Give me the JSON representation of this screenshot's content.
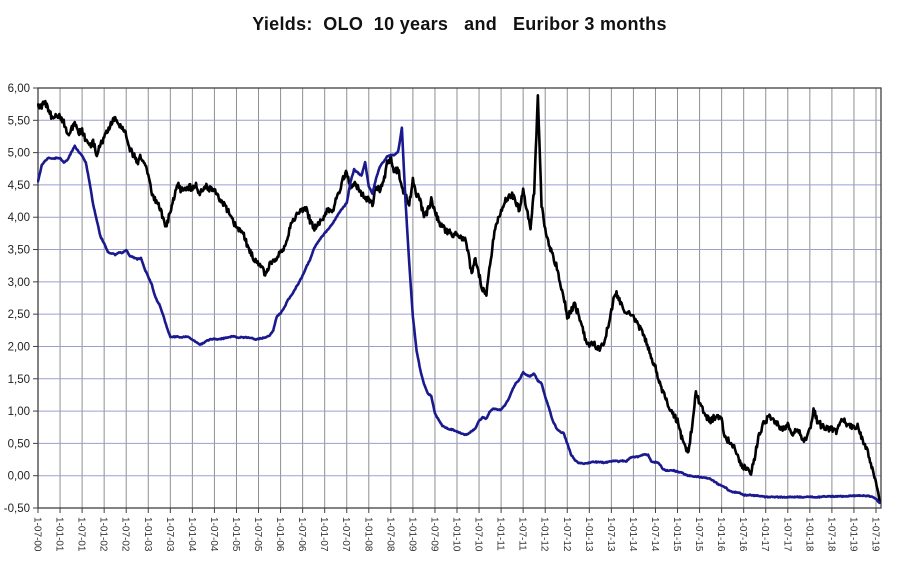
{
  "title": "Yields:  OLO  10 years   and   Euribor 3 months",
  "colors": {
    "olo_line": "#000000",
    "euribor_line": "#1a1a8e",
    "h_gridline": "#9a9fd0",
    "v_gridline": "#8f8f8f",
    "axis_border": "#404040",
    "tick_label": "#333333",
    "y_label": "#222222",
    "background": "#ffffff"
  },
  "chart_data": {
    "type": "line",
    "title": "Yields:  OLO  10 years   and   Euribor 3 months",
    "xlabel": "",
    "ylabel": "",
    "ylim": [
      -0.5,
      6.0
    ],
    "y_step": 0.5,
    "grid": "both",
    "legend_position": "none",
    "x_start_month": "2000-07",
    "x_end_month": "2019-08",
    "x_sampling": "monthly",
    "y_tick_labels": [
      "6,00",
      "5,50",
      "5,00",
      "4,50",
      "4,00",
      "3,50",
      "3,00",
      "2,50",
      "2,00",
      "1,50",
      "1,00",
      "0,50",
      "0,00",
      "-0,50"
    ],
    "x_tick_labels": [
      "1-07-00",
      "1-01-01",
      "1-07-01",
      "1-01-02",
      "1-07-02",
      "1-01-03",
      "1-07-03",
      "1-01-04",
      "1-07-04",
      "1-01-05",
      "1-07-05",
      "1-01-06",
      "1-07-06",
      "1-01-07",
      "1-07-07",
      "1-01-08",
      "1-07-08",
      "1-01-09",
      "1-07-09",
      "1-01-10",
      "1-07-10",
      "1-01-11",
      "1-07-11",
      "1-01-12",
      "1-07-12",
      "1-01-13",
      "1-07-13",
      "1-01-14",
      "1-07-14",
      "1-01-15",
      "1-07-15",
      "1-01-16",
      "1-07-16",
      "1-01-17",
      "1-07-17",
      "1-01-18",
      "1-07-18",
      "1-01-19",
      "1-07-19"
    ],
    "series": [
      {
        "name": "OLO 10 years",
        "color": "#000000",
        "values": [
          5.7,
          5.73,
          5.75,
          5.65,
          5.52,
          5.6,
          5.55,
          5.48,
          5.25,
          5.35,
          5.45,
          5.3,
          5.35,
          5.18,
          5.09,
          5.18,
          4.96,
          5.15,
          5.22,
          5.35,
          5.48,
          5.51,
          5.45,
          5.35,
          5.3,
          5.05,
          4.96,
          4.84,
          4.94,
          4.8,
          4.66,
          4.38,
          4.25,
          4.18,
          3.98,
          3.85,
          4.1,
          4.32,
          4.5,
          4.42,
          4.45,
          4.47,
          4.45,
          4.53,
          4.35,
          4.45,
          4.48,
          4.42,
          4.42,
          4.3,
          4.24,
          4.15,
          4.09,
          3.95,
          3.85,
          3.8,
          3.72,
          3.55,
          3.45,
          3.32,
          3.26,
          3.2,
          3.11,
          3.25,
          3.33,
          3.38,
          3.44,
          3.55,
          3.72,
          3.91,
          4.0,
          4.06,
          4.09,
          4.14,
          3.95,
          3.82,
          3.86,
          3.93,
          4.05,
          4.14,
          4.06,
          4.25,
          4.42,
          4.6,
          4.7,
          4.42,
          4.52,
          4.45,
          4.36,
          4.29,
          4.29,
          4.2,
          4.49,
          4.4,
          4.55,
          4.83,
          4.93,
          4.7,
          4.75,
          4.45,
          4.35,
          4.2,
          4.56,
          4.35,
          4.25,
          4.0,
          4.1,
          4.26,
          4.1,
          3.93,
          3.85,
          3.8,
          3.76,
          3.73,
          3.73,
          3.7,
          3.68,
          3.45,
          3.12,
          3.35,
          3.1,
          2.88,
          2.82,
          3.26,
          3.7,
          3.95,
          4.11,
          4.25,
          4.3,
          4.34,
          4.25,
          4.1,
          4.4,
          4.1,
          3.85,
          4.4,
          5.85,
          4.2,
          3.8,
          3.6,
          3.4,
          3.25,
          3.0,
          2.8,
          2.44,
          2.55,
          2.66,
          2.5,
          2.3,
          2.1,
          2.0,
          2.06,
          1.98,
          1.96,
          2.05,
          2.3,
          2.55,
          2.84,
          2.75,
          2.6,
          2.48,
          2.52,
          2.44,
          2.36,
          2.25,
          2.15,
          2.0,
          1.8,
          1.69,
          1.45,
          1.3,
          1.15,
          1.02,
          0.92,
          0.86,
          0.6,
          0.45,
          0.37,
          0.8,
          1.31,
          1.12,
          1.0,
          0.91,
          0.85,
          0.9,
          0.93,
          0.85,
          0.58,
          0.55,
          0.48,
          0.35,
          0.2,
          0.13,
          0.1,
          0.06,
          0.25,
          0.63,
          0.75,
          0.86,
          0.9,
          0.85,
          0.8,
          0.75,
          0.71,
          0.8,
          0.63,
          0.68,
          0.68,
          0.55,
          0.58,
          0.7,
          1.02,
          0.86,
          0.78,
          0.75,
          0.73,
          0.73,
          0.67,
          0.76,
          0.89,
          0.78,
          0.77,
          0.72,
          0.78,
          0.58,
          0.48,
          0.32,
          0.1,
          -0.12,
          -0.42
        ]
      },
      {
        "name": "Euribor 3 months",
        "color": "#1a1a8e",
        "values": [
          4.55,
          4.8,
          4.88,
          4.92,
          4.9,
          4.92,
          4.91,
          4.85,
          4.88,
          5.0,
          5.1,
          5.02,
          4.95,
          4.85,
          4.55,
          4.2,
          3.95,
          3.7,
          3.6,
          3.46,
          3.44,
          3.42,
          3.45,
          3.45,
          3.49,
          3.4,
          3.38,
          3.35,
          3.37,
          3.2,
          3.08,
          2.95,
          2.75,
          2.65,
          2.5,
          2.3,
          2.15,
          2.15,
          2.15,
          2.14,
          2.15,
          2.15,
          2.1,
          2.07,
          2.03,
          2.05,
          2.09,
          2.11,
          2.12,
          2.11,
          2.12,
          2.13,
          2.14,
          2.16,
          2.14,
          2.14,
          2.14,
          2.14,
          2.13,
          2.11,
          2.12,
          2.13,
          2.14,
          2.17,
          2.25,
          2.47,
          2.51,
          2.6,
          2.72,
          2.79,
          2.89,
          2.99,
          3.1,
          3.23,
          3.34,
          3.5,
          3.6,
          3.68,
          3.75,
          3.82,
          3.89,
          3.98,
          4.07,
          4.15,
          4.22,
          4.54,
          4.74,
          4.69,
          4.64,
          4.85,
          4.48,
          4.36,
          4.6,
          4.78,
          4.86,
          4.94,
          4.96,
          4.96,
          5.02,
          5.38,
          4.24,
          3.29,
          2.46,
          1.94,
          1.64,
          1.42,
          1.28,
          1.23,
          0.97,
          0.86,
          0.77,
          0.74,
          0.72,
          0.71,
          0.68,
          0.66,
          0.64,
          0.64,
          0.69,
          0.73,
          0.85,
          0.9,
          0.88,
          1.0,
          1.04,
          1.02,
          1.02,
          1.09,
          1.18,
          1.32,
          1.43,
          1.49,
          1.6,
          1.55,
          1.54,
          1.58,
          1.47,
          1.43,
          1.22,
          1.05,
          0.86,
          0.74,
          0.68,
          0.66,
          0.5,
          0.33,
          0.25,
          0.2,
          0.19,
          0.19,
          0.2,
          0.22,
          0.21,
          0.21,
          0.2,
          0.21,
          0.22,
          0.23,
          0.22,
          0.23,
          0.22,
          0.27,
          0.29,
          0.29,
          0.31,
          0.33,
          0.32,
          0.21,
          0.21,
          0.19,
          0.1,
          0.08,
          0.08,
          0.08,
          0.06,
          0.05,
          0.02,
          0.0,
          -0.01,
          -0.01,
          -0.02,
          -0.03,
          -0.04,
          -0.05,
          -0.09,
          -0.13,
          -0.15,
          -0.18,
          -0.23,
          -0.25,
          -0.26,
          -0.27,
          -0.3,
          -0.3,
          -0.3,
          -0.31,
          -0.31,
          -0.32,
          -0.33,
          -0.33,
          -0.33,
          -0.33,
          -0.33,
          -0.33,
          -0.33,
          -0.33,
          -0.33,
          -0.33,
          -0.33,
          -0.33,
          -0.33,
          -0.33,
          -0.33,
          -0.33,
          -0.32,
          -0.32,
          -0.32,
          -0.32,
          -0.32,
          -0.32,
          -0.32,
          -0.31,
          -0.31,
          -0.31,
          -0.31,
          -0.31,
          -0.31,
          -0.33,
          -0.36,
          -0.42
        ]
      }
    ]
  }
}
